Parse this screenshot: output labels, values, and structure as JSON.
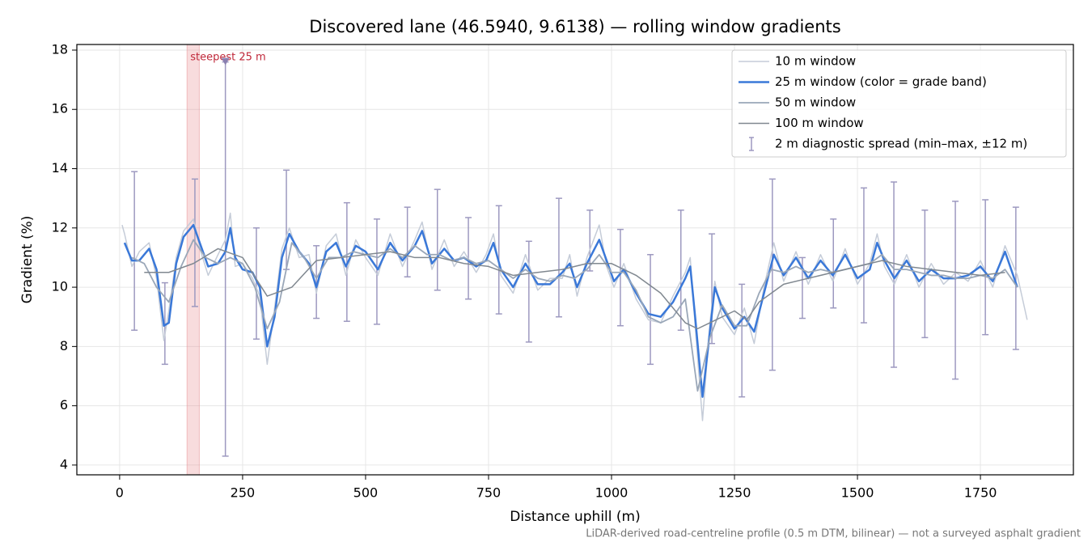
{
  "chart_data": {
    "type": "line",
    "title": "Discovered lane (46.5940, 9.6138) — rolling window gradients",
    "xlabel": "Distance uphill (m)",
    "ylabel": "Gradient (%)",
    "footnote": "LiDAR-derived road-centreline profile (0.5 m DTM, bilinear) — not a surveyed asphalt gradient",
    "xlim": [
      -87,
      1939
    ],
    "ylim": [
      3.67,
      18.19
    ],
    "xticks": [
      0,
      250,
      500,
      750,
      1000,
      1250,
      1500,
      1750
    ],
    "yticks": [
      4,
      6,
      8,
      10,
      12,
      14,
      16,
      18
    ],
    "grid": true,
    "legend": "upper right",
    "highlight": {
      "xlim": [
        137,
        162
      ],
      "label": "steepest 25 m",
      "color": "#e88a90",
      "marker_x": 215,
      "marker_value": 17.6
    },
    "series": [
      {
        "name": "10 m window",
        "color": "#c5ccd8",
        "width": 1.5,
        "x": [
          5,
          10,
          25,
          40,
          60,
          75,
          90,
          100,
          115,
          130,
          150,
          165,
          180,
          200,
          215,
          225,
          235,
          250,
          270,
          285,
          300,
          315,
          330,
          345,
          365,
          385,
          400,
          420,
          440,
          460,
          480,
          500,
          525,
          550,
          575,
          600,
          615,
          635,
          660,
          680,
          700,
          725,
          745,
          760,
          775,
          800,
          825,
          850,
          875,
          900,
          915,
          930,
          950,
          975,
          990,
          1005,
          1025,
          1050,
          1075,
          1100,
          1125,
          1150,
          1160,
          1170,
          1185,
          1200,
          1210,
          1225,
          1250,
          1270,
          1290,
          1310,
          1330,
          1350,
          1375,
          1400,
          1425,
          1450,
          1475,
          1500,
          1525,
          1540,
          1555,
          1575,
          1600,
          1625,
          1650,
          1675,
          1700,
          1725,
          1750,
          1775,
          1800,
          1825,
          1845
        ],
        "values": [
          12.1,
          11.8,
          10.7,
          11.2,
          11.5,
          10.3,
          8.2,
          9.2,
          11.0,
          11.9,
          12.3,
          11.2,
          10.4,
          11.1,
          11.6,
          12.5,
          10.7,
          10.8,
          10.3,
          9.7,
          7.4,
          9.3,
          11.3,
          12.0,
          11.0,
          11.1,
          9.8,
          11.4,
          11.8,
          10.4,
          11.6,
          11.0,
          10.4,
          11.8,
          10.7,
          11.6,
          12.2,
          10.6,
          11.6,
          10.7,
          11.2,
          10.5,
          11.1,
          11.8,
          10.4,
          9.8,
          11.1,
          9.9,
          10.3,
          10.3,
          11.1,
          9.7,
          11.0,
          12.1,
          10.7,
          10.0,
          10.8,
          9.6,
          8.9,
          8.8,
          9.7,
          10.5,
          11.0,
          8.7,
          5.5,
          8.8,
          10.2,
          9.0,
          8.4,
          9.3,
          8.1,
          10.0,
          11.5,
          10.2,
          11.2,
          10.1,
          11.1,
          10.2,
          11.3,
          10.1,
          10.8,
          11.8,
          10.7,
          10.1,
          11.1,
          10.0,
          10.8,
          10.1,
          10.5,
          10.2,
          10.9,
          10.0,
          11.4,
          10.4,
          8.9
        ]
      },
      {
        "name": "25 m window (color = grade band)",
        "color": "#3a78d8",
        "width": 2.5,
        "x": [
          10,
          25,
          40,
          60,
          75,
          90,
          100,
          115,
          130,
          150,
          165,
          180,
          200,
          215,
          225,
          235,
          250,
          270,
          285,
          300,
          315,
          330,
          345,
          365,
          385,
          400,
          420,
          440,
          460,
          480,
          500,
          525,
          550,
          575,
          600,
          615,
          635,
          660,
          680,
          700,
          725,
          745,
          760,
          775,
          800,
          825,
          850,
          875,
          900,
          915,
          930,
          950,
          975,
          990,
          1005,
          1025,
          1050,
          1075,
          1100,
          1125,
          1150,
          1160,
          1170,
          1185,
          1200,
          1210,
          1225,
          1250,
          1270,
          1290,
          1310,
          1330,
          1350,
          1375,
          1400,
          1425,
          1450,
          1475,
          1500,
          1525,
          1540,
          1555,
          1575,
          1600,
          1625,
          1650,
          1675,
          1700,
          1725,
          1750,
          1775,
          1800,
          1825
        ],
        "values": [
          11.5,
          10.9,
          10.9,
          11.3,
          10.6,
          8.7,
          8.8,
          10.8,
          11.7,
          12.1,
          11.4,
          10.7,
          10.8,
          11.2,
          12.0,
          11.0,
          10.6,
          10.5,
          10.0,
          8.0,
          9.0,
          11.0,
          11.8,
          11.2,
          10.8,
          10.0,
          11.2,
          11.5,
          10.7,
          11.4,
          11.2,
          10.6,
          11.5,
          10.9,
          11.4,
          11.9,
          10.8,
          11.3,
          10.9,
          11.0,
          10.7,
          10.9,
          11.5,
          10.6,
          10.0,
          10.8,
          10.1,
          10.1,
          10.5,
          10.8,
          10.0,
          10.8,
          11.6,
          10.9,
          10.2,
          10.6,
          9.8,
          9.1,
          9.0,
          9.5,
          10.3,
          10.7,
          9.0,
          6.3,
          8.5,
          10.0,
          9.3,
          8.6,
          9.0,
          8.5,
          9.8,
          11.1,
          10.4,
          11.0,
          10.3,
          10.9,
          10.4,
          11.1,
          10.3,
          10.6,
          11.5,
          10.9,
          10.3,
          10.9,
          10.2,
          10.6,
          10.3,
          10.3,
          10.4,
          10.7,
          10.2,
          11.2,
          10.0
        ]
      },
      {
        "name": "50 m window",
        "color": "#9aa7b8",
        "width": 1.8,
        "x": [
          25,
          50,
          75,
          100,
          125,
          150,
          175,
          200,
          225,
          250,
          275,
          300,
          325,
          350,
          375,
          400,
          425,
          450,
          475,
          500,
          525,
          550,
          575,
          600,
          625,
          650,
          675,
          700,
          725,
          750,
          775,
          800,
          825,
          850,
          875,
          900,
          925,
          950,
          975,
          1000,
          1025,
          1050,
          1075,
          1100,
          1125,
          1150,
          1175,
          1200,
          1225,
          1250,
          1275,
          1300,
          1325,
          1350,
          1375,
          1400,
          1425,
          1450,
          1475,
          1500,
          1525,
          1550,
          1575,
          1600,
          1625,
          1650,
          1675,
          1700,
          1725,
          1750,
          1775,
          1800,
          1825
        ],
        "values": [
          11.0,
          10.8,
          10.0,
          9.5,
          10.7,
          11.6,
          11.0,
          10.8,
          11.0,
          10.8,
          10.0,
          8.6,
          9.5,
          11.5,
          11.0,
          10.3,
          11.0,
          11.0,
          11.2,
          11.1,
          11.0,
          11.3,
          11.0,
          11.4,
          11.1,
          11.1,
          10.9,
          11.0,
          10.8,
          10.9,
          10.6,
          10.3,
          10.6,
          10.3,
          10.2,
          10.4,
          10.3,
          10.6,
          11.1,
          10.5,
          10.5,
          9.9,
          9.0,
          8.8,
          9.0,
          9.6,
          6.5,
          8.3,
          9.4,
          8.7,
          8.7,
          9.8,
          10.6,
          10.5,
          10.7,
          10.5,
          10.6,
          10.5,
          10.6,
          10.7,
          10.8,
          11.1,
          10.6,
          10.6,
          10.5,
          10.4,
          10.4,
          10.3,
          10.3,
          10.4,
          10.3,
          10.6,
          10.0
        ]
      },
      {
        "name": "100 m window",
        "color": "#808890",
        "width": 1.5,
        "x": [
          50,
          100,
          150,
          200,
          250,
          300,
          350,
          400,
          450,
          500,
          550,
          600,
          650,
          700,
          750,
          800,
          850,
          900,
          950,
          1000,
          1050,
          1100,
          1150,
          1175,
          1200,
          1250,
          1275,
          1300,
          1350,
          1400,
          1450,
          1500,
          1550,
          1600,
          1650,
          1700,
          1750,
          1800
        ],
        "values": [
          10.5,
          10.5,
          10.8,
          11.3,
          11.0,
          9.7,
          10.0,
          10.9,
          11.0,
          11.1,
          11.2,
          11.0,
          11.0,
          10.8,
          10.7,
          10.4,
          10.5,
          10.6,
          10.8,
          10.8,
          10.4,
          9.8,
          8.8,
          8.6,
          8.8,
          9.2,
          8.9,
          9.5,
          10.1,
          10.3,
          10.5,
          10.7,
          10.9,
          10.7,
          10.6,
          10.5,
          10.4,
          10.5
        ]
      }
    ],
    "errorbars": {
      "name": "2 m diagnostic spread (min–max, ±12 m)",
      "color": "#9d99c0",
      "x": [
        30,
        92,
        153,
        215,
        278,
        339,
        400,
        462,
        523,
        585,
        646,
        709,
        771,
        832,
        893,
        956,
        1018,
        1079,
        1141,
        1204,
        1265,
        1327,
        1388,
        1451,
        1513,
        1574,
        1637,
        1699,
        1760,
        1822
      ],
      "max": [
        13.9,
        10.15,
        13.65,
        17.6,
        12.0,
        13.95,
        11.4,
        12.85,
        12.3,
        12.7,
        13.3,
        12.35,
        12.75,
        11.55,
        13.0,
        12.6,
        11.95,
        11.1,
        12.6,
        11.8,
        10.1,
        13.65,
        11.0,
        12.3,
        13.35,
        13.55,
        12.6,
        12.9,
        12.95,
        12.7
      ],
      "min": [
        8.55,
        7.4,
        9.35,
        4.3,
        8.25,
        10.6,
        8.95,
        8.85,
        8.75,
        10.35,
        9.9,
        9.6,
        9.1,
        8.15,
        9.0,
        10.55,
        8.7,
        7.4,
        8.55,
        8.1,
        6.3,
        7.2,
        8.95,
        9.3,
        8.8,
        7.3,
        8.3,
        6.9,
        8.4,
        7.9
      ]
    }
  }
}
